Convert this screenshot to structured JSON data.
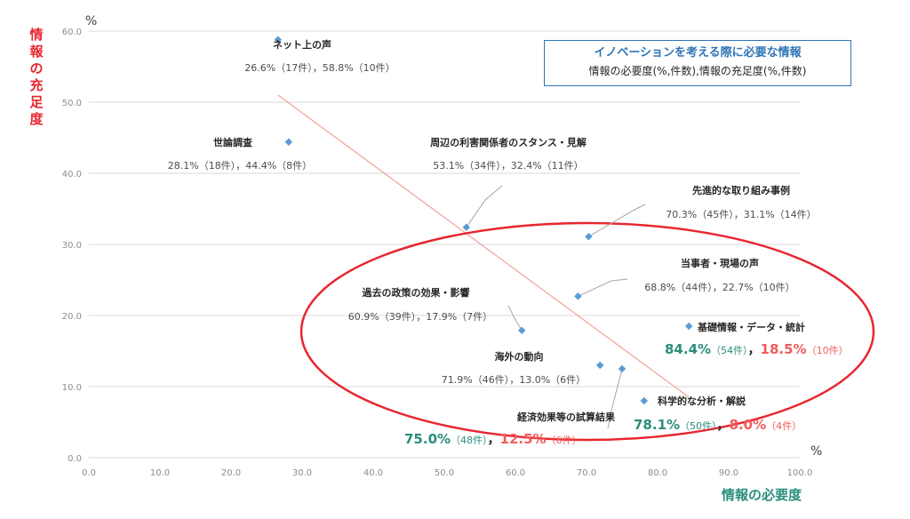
{
  "chart_data": {
    "type": "scatter",
    "legend_title": "イノベーションを考える際に必要な情報",
    "legend_subtitle": "情報の必要度(%,件数),情報の充足度(%,件数)",
    "xlabel": "情報の必要度",
    "ylabel": "情報の充足度",
    "x_unit": "%",
    "y_unit": "%",
    "xlim": [
      0,
      100
    ],
    "ylim": [
      0,
      60
    ],
    "x_ticks": [
      "0.0",
      "10.0",
      "20.0",
      "30.0",
      "40.0",
      "50.0",
      "60.0",
      "70.0",
      "80.0",
      "90.0",
      "100.0"
    ],
    "y_ticks": [
      "0.0",
      "10.0",
      "20.0",
      "30.0",
      "40.0",
      "50.0",
      "60.0"
    ],
    "grid": "horizontal",
    "trendline": {
      "x": [
        26.6,
        84.4
      ],
      "y": [
        51.0,
        8.5
      ]
    },
    "points": [
      {
        "name": "ネット上の声",
        "x": 26.6,
        "y": 58.8,
        "nx": "26.6%",
        "cx": "（17件）",
        "ny": "58.8%",
        "cy": "（10件）"
      },
      {
        "name": "世論調査",
        "x": 28.1,
        "y": 44.4,
        "nx": "28.1%",
        "cx": "（18件）",
        "ny": "44.4%",
        "cy": "（8件）"
      },
      {
        "name": "周辺の利害関係者のスタンス・見解",
        "x": 53.1,
        "y": 32.4,
        "nx": "53.1%",
        "cx": "（34件）",
        "ny": "32.4%",
        "cy": "（11件）"
      },
      {
        "name": "先進的な取り組み事例",
        "x": 70.3,
        "y": 31.1,
        "nx": "70.3%",
        "cx": "（45件）",
        "ny": "31.1%",
        "cy": "（14件）"
      },
      {
        "name": "当事者・現場の声",
        "x": 68.8,
        "y": 22.7,
        "nx": "68.8%",
        "cx": "（44件）",
        "ny": "22.7%",
        "cy": "（10件）"
      },
      {
        "name": "過去の政策の効果・影響",
        "x": 60.9,
        "y": 17.9,
        "nx": "60.9%",
        "cx": "（39件）",
        "ny": "17.9%",
        "cy": "（7件）"
      },
      {
        "name": "基礎情報・データ・統計",
        "x": 84.4,
        "y": 18.5,
        "nx": "84.4%",
        "cx": "（54件）",
        "ny": "18.5%",
        "cy": "（10件）"
      },
      {
        "name": "海外の動向",
        "x": 71.9,
        "y": 13.0,
        "nx": "71.9%",
        "cx": "（46件）",
        "ny": "13.0%",
        "cy": "（6件）"
      },
      {
        "name": "科学的な分析・解説",
        "x": 78.1,
        "y": 8.0,
        "nx": "78.1%",
        "cx": "（50件）",
        "ny": "8.0%",
        "cy": "（4件）"
      },
      {
        "name": "経済効果等の試算結果",
        "x": 75.0,
        "y": 12.5,
        "nx": "75.0%",
        "cx": "（48件）",
        "ny": "12.5%",
        "cy": "（6件）"
      }
    ]
  },
  "colors": {
    "marker": "#5b9bd5",
    "trendline": "#f4a09b",
    "ellipse": "#e8262f",
    "highlight_need": "#2a8e7c",
    "highlight_fill": "#f05c5c",
    "ylabel": "#e8262f",
    "legend_border": "#2e75b6"
  }
}
